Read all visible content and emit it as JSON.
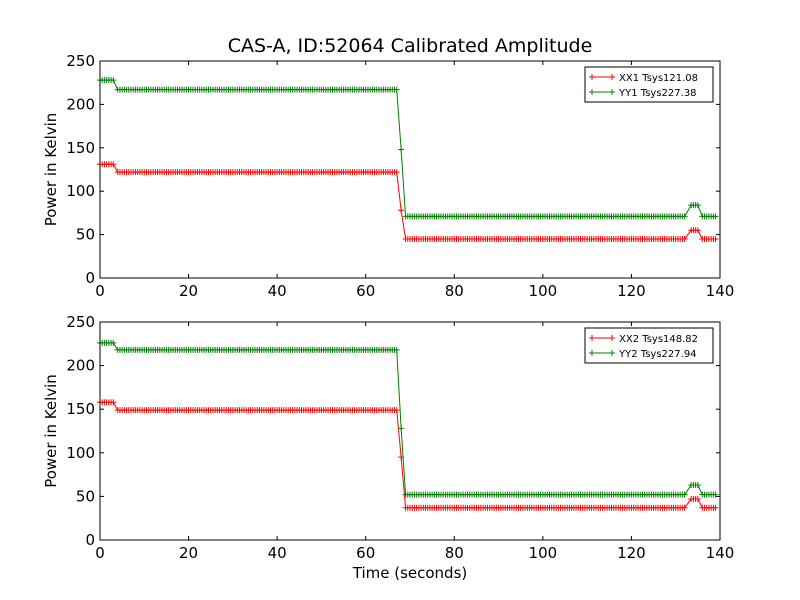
{
  "figure": {
    "title": "CAS-A, ID:52064 Calibrated Amplitude",
    "xlabel": "Time (seconds)"
  },
  "chart_data": [
    {
      "type": "line",
      "ylabel": "Power in Kelvin",
      "xlabel": "",
      "xlim": [
        0,
        140
      ],
      "ylim": [
        0,
        250
      ],
      "xticks": [
        "0",
        "20",
        "40",
        "60",
        "80",
        "100",
        "120",
        "140"
      ],
      "yticks": [
        "0",
        "50",
        "100",
        "150",
        "200",
        "250"
      ],
      "legend_position": "top-right",
      "marker": "plus",
      "series": [
        {
          "name": "XX1 Tsys121.08",
          "color": "#ff0000",
          "segments": [
            {
              "x0": 0,
              "x1": 3,
              "y": 131
            },
            {
              "x0": 4,
              "x1": 67,
              "y": 122
            },
            {
              "x0": 69,
              "x1": 132,
              "y": 45
            },
            {
              "x0": 133.5,
              "x1": 135,
              "y": 55
            },
            {
              "x0": 136,
              "x1": 139,
              "y": 45
            }
          ],
          "transition": {
            "x": 68,
            "y": 78
          }
        },
        {
          "name": "YY1 Tsys227.38",
          "color": "#008000",
          "segments": [
            {
              "x0": 0,
              "x1": 3,
              "y": 228
            },
            {
              "x0": 4,
              "x1": 67,
              "y": 217
            },
            {
              "x0": 69,
              "x1": 132,
              "y": 71
            },
            {
              "x0": 133.5,
              "x1": 135,
              "y": 84
            },
            {
              "x0": 136,
              "x1": 139,
              "y": 71
            }
          ],
          "transition": {
            "x": 68,
            "y": 148
          }
        }
      ]
    },
    {
      "type": "line",
      "ylabel": "Power in Kelvin",
      "xlabel": "Time (seconds)",
      "xlim": [
        0,
        140
      ],
      "ylim": [
        0,
        250
      ],
      "xticks": [
        "0",
        "20",
        "40",
        "60",
        "80",
        "100",
        "120",
        "140"
      ],
      "yticks": [
        "0",
        "50",
        "100",
        "150",
        "200",
        "250"
      ],
      "legend_position": "top-right",
      "marker": "plus",
      "series": [
        {
          "name": "XX2 Tsys148.82",
          "color": "#ff0000",
          "segments": [
            {
              "x0": 0,
              "x1": 3,
              "y": 158
            },
            {
              "x0": 4,
              "x1": 67,
              "y": 149
            },
            {
              "x0": 69,
              "x1": 132,
              "y": 37
            },
            {
              "x0": 133.5,
              "x1": 135,
              "y": 47
            },
            {
              "x0": 136,
              "x1": 139,
              "y": 37
            }
          ],
          "transition": {
            "x": 68,
            "y": 95
          }
        },
        {
          "name": "YY2 Tsys227.94",
          "color": "#008000",
          "segments": [
            {
              "x0": 0,
              "x1": 3,
              "y": 226
            },
            {
              "x0": 4,
              "x1": 67,
              "y": 218
            },
            {
              "x0": 69,
              "x1": 132,
              "y": 52
            },
            {
              "x0": 133.5,
              "x1": 135,
              "y": 63
            },
            {
              "x0": 136,
              "x1": 139,
              "y": 52
            }
          ],
          "transition": {
            "x": 68,
            "y": 128
          }
        }
      ]
    }
  ]
}
